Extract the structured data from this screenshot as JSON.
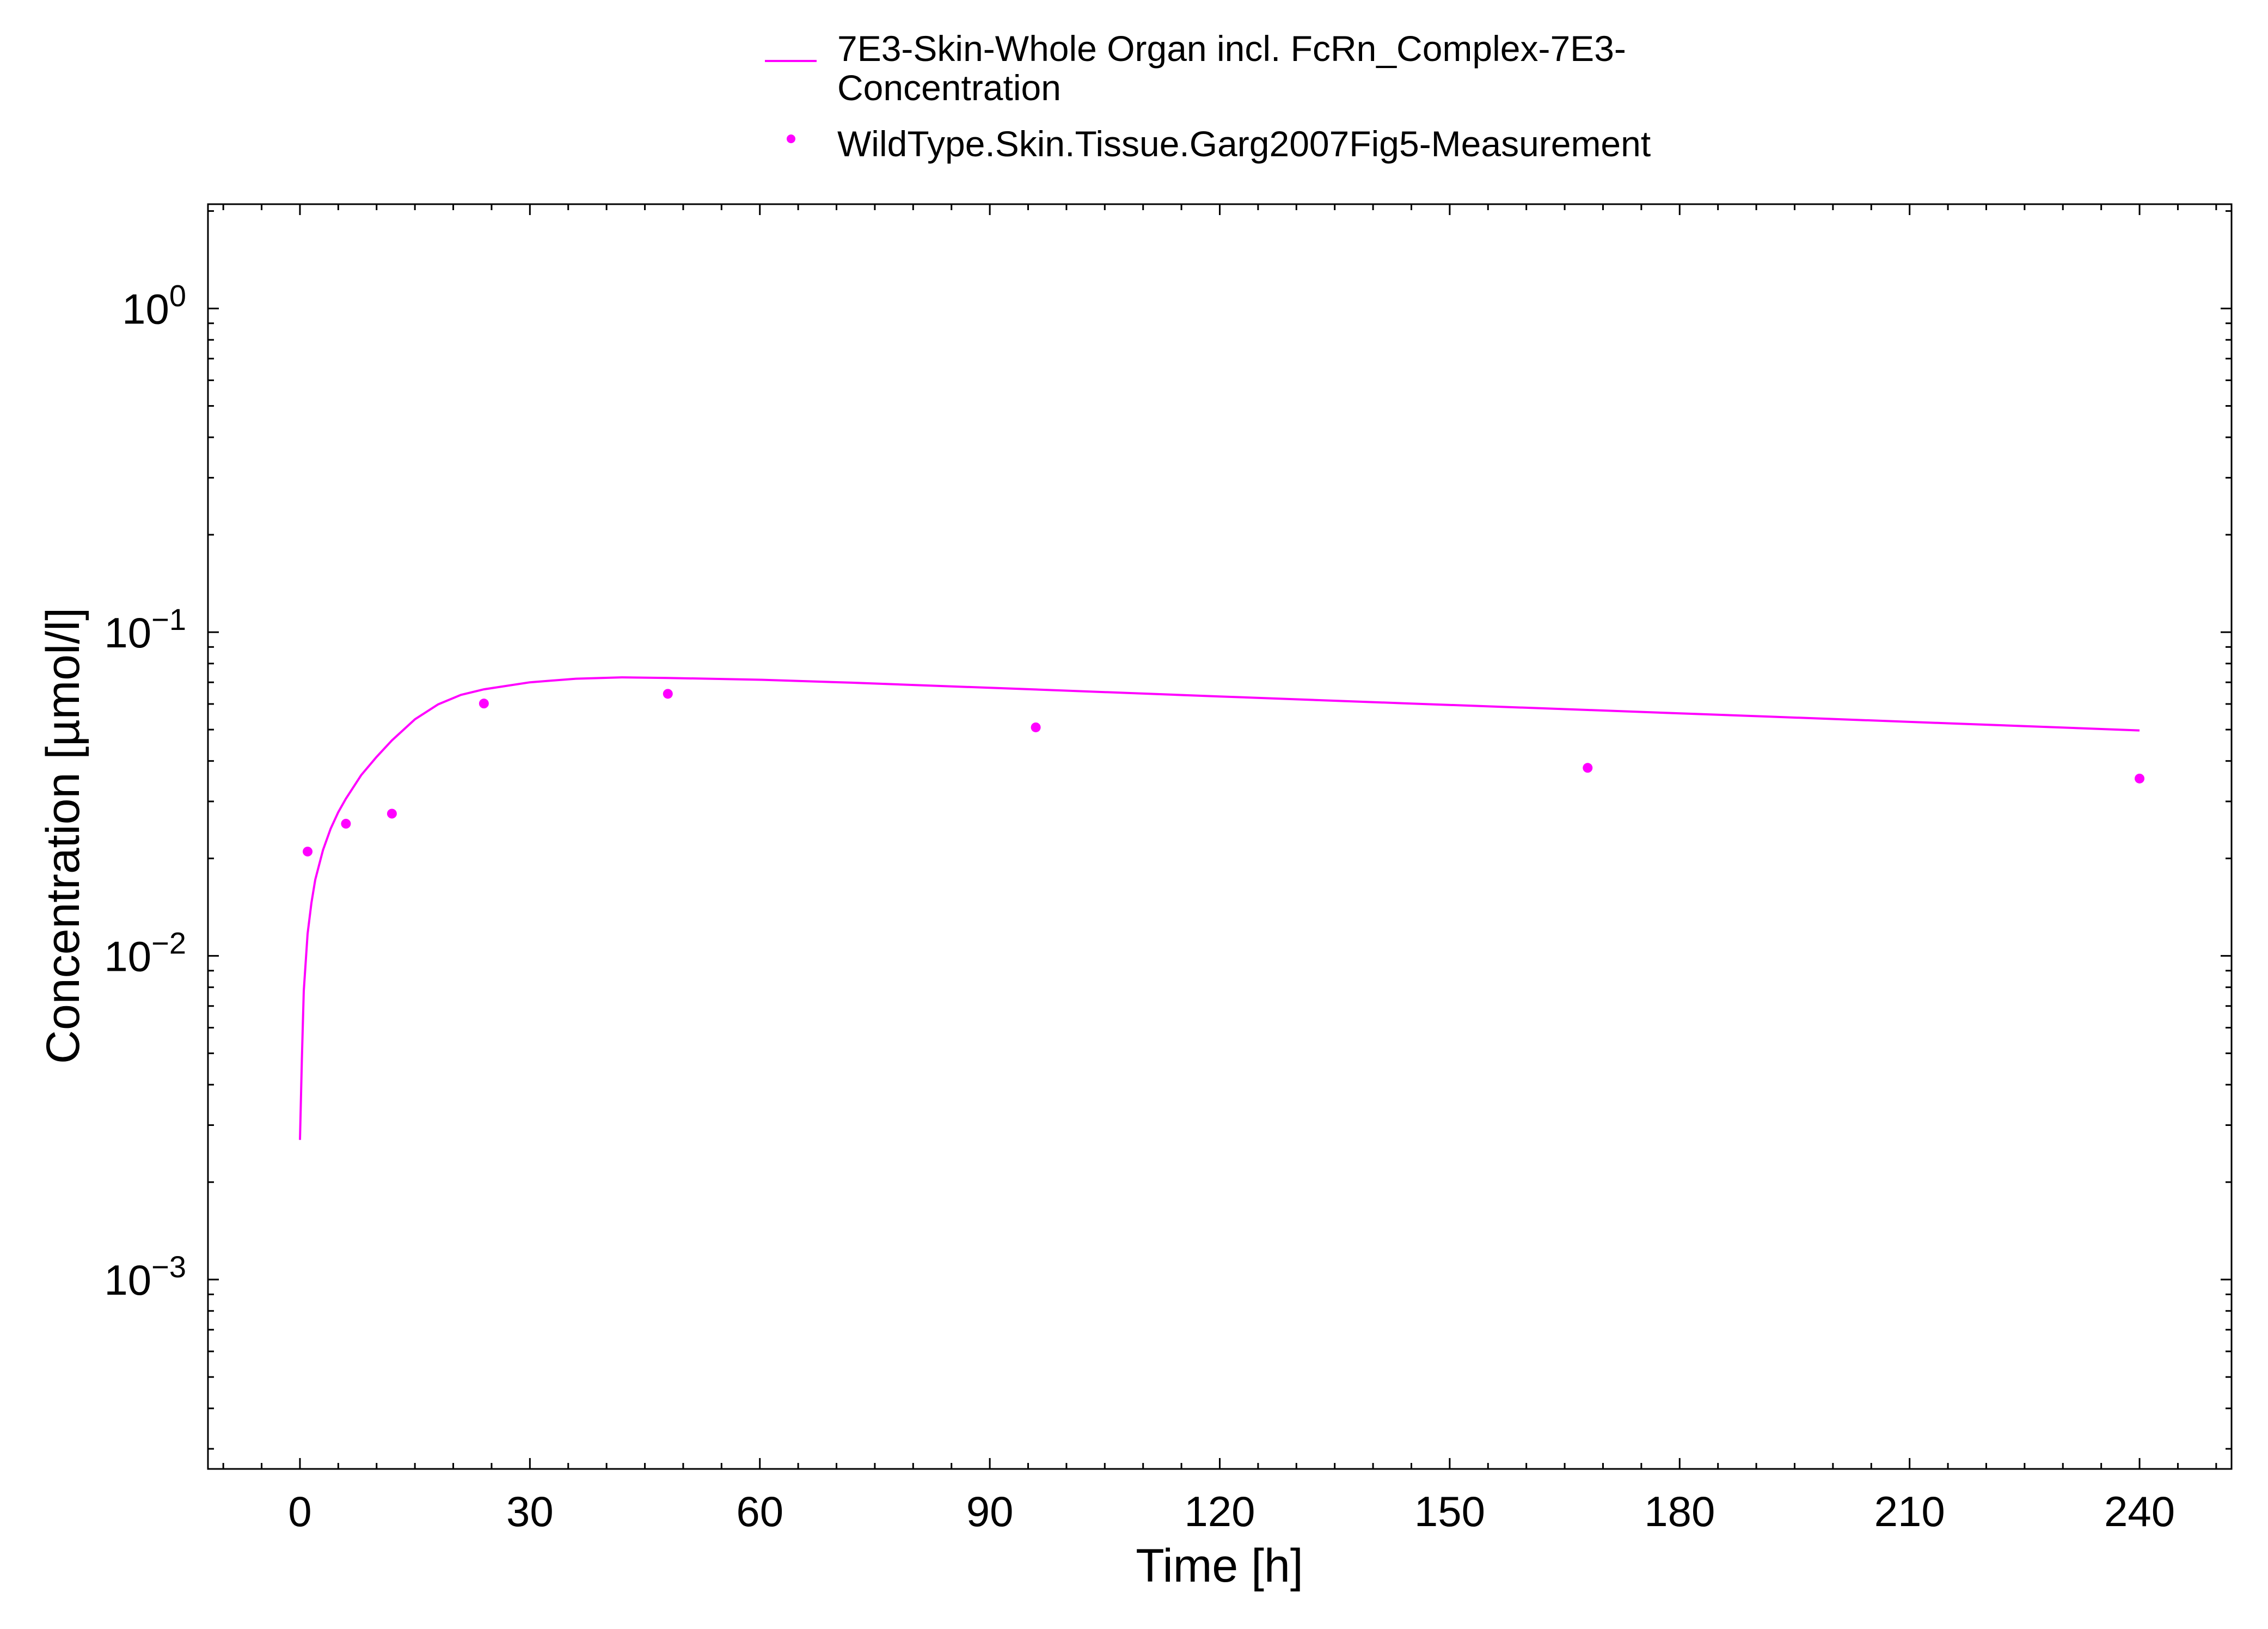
{
  "chart_data": {
    "type": "line",
    "title": "",
    "xlabel": "Time [h]",
    "ylabel": "Concentration [µmol/l]",
    "x_scale": "linear",
    "y_scale": "log",
    "xlim": [
      -12,
      252
    ],
    "ylim": [
      0.00026,
      2.1
    ],
    "xticks": [
      0,
      30,
      60,
      90,
      120,
      150,
      180,
      210,
      240
    ],
    "xtick_labels": [
      "0",
      "30",
      "60",
      "90",
      "120",
      "150",
      "180",
      "210",
      "240"
    ],
    "yticks": [
      {
        "value": 1,
        "base": "10",
        "exp": "0"
      },
      {
        "value": 0.1,
        "base": "10",
        "exp": "−1"
      },
      {
        "value": 0.01,
        "base": "10",
        "exp": "−2"
      },
      {
        "value": 0.001,
        "base": "10",
        "exp": "−3"
      }
    ],
    "grid": false,
    "legend_position": "top-center",
    "series": [
      {
        "name_lines": [
          "7E3-Skin-Whole Organ incl. FcRn_Complex-7E3-",
          "Concentration"
        ],
        "kind": "line",
        "color": "#ff00ff",
        "x": [
          0,
          0.25,
          0.5,
          1,
          1.5,
          2,
          3,
          4,
          5,
          6,
          8,
          10,
          12,
          15,
          18,
          21,
          24,
          30,
          36,
          42,
          48,
          60,
          72,
          96,
          120,
          144,
          168,
          192,
          216,
          240
        ],
        "y": [
          0.0027,
          0.0048,
          0.0078,
          0.0117,
          0.0146,
          0.0172,
          0.0212,
          0.0247,
          0.0278,
          0.0306,
          0.0362,
          0.0412,
          0.0463,
          0.0538,
          0.0598,
          0.064,
          0.0666,
          0.07,
          0.0718,
          0.0725,
          0.0722,
          0.0713,
          0.0698,
          0.0665,
          0.0633,
          0.0603,
          0.0575,
          0.0548,
          0.0522,
          0.0497
        ]
      },
      {
        "name": "WildType.Skin.Tissue.Garg2007Fig5-Measurement",
        "kind": "scatter",
        "color": "#ff00ff",
        "x": [
          1,
          6,
          12,
          24,
          48,
          96,
          168,
          240
        ],
        "y": [
          0.021,
          0.0256,
          0.0275,
          0.0602,
          0.0645,
          0.0508,
          0.0381,
          0.0353
        ]
      }
    ]
  }
}
